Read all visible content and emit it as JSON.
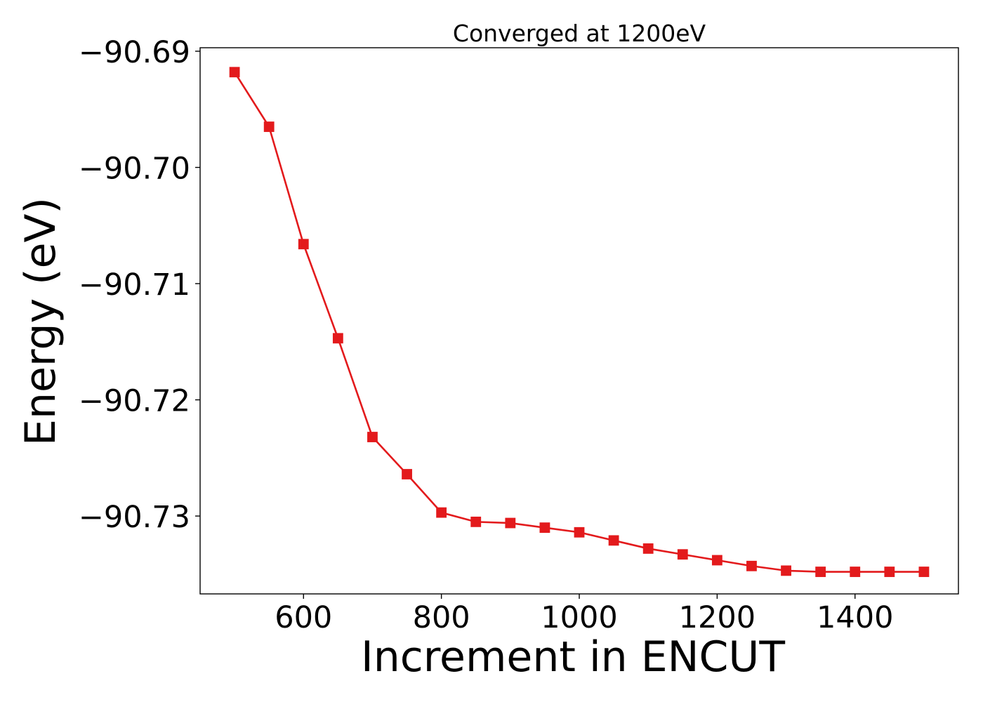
{
  "chart_data": {
    "type": "line",
    "title": "Converged at 1200eV",
    "xlabel": "Increment in ENCUT",
    "ylabel": "Energy (eV)",
    "x": [
      500,
      550,
      600,
      650,
      700,
      750,
      800,
      850,
      900,
      950,
      1000,
      1050,
      1100,
      1150,
      1200,
      1250,
      1300,
      1350,
      1400,
      1450,
      1500
    ],
    "series": [
      {
        "color": "#e31a1c",
        "marker": "square",
        "values": [
          -90.6918,
          -90.6965,
          -90.7066,
          -90.7147,
          -90.7232,
          -90.7264,
          -90.7297,
          -90.7305,
          -90.7306,
          -90.731,
          -90.7314,
          -90.7321,
          -90.7328,
          -90.7333,
          -90.7338,
          -90.7343,
          -90.7347,
          -90.7348,
          -90.7348,
          -90.7348,
          -90.7348
        ]
      }
    ],
    "xlim": [
      450,
      1550
    ],
    "ylim": [
      -90.7367,
      -90.6897
    ],
    "xticks": [
      600,
      800,
      1000,
      1200,
      1400
    ],
    "xtick_labels": [
      "600",
      "800",
      "1000",
      "1200",
      "1400"
    ],
    "yticks": [
      -90.69,
      -90.7,
      -90.71,
      -90.72,
      -90.73
    ],
    "ytick_labels": [
      "−90.69",
      "−90.70",
      "−90.71",
      "−90.72",
      "−90.73"
    ],
    "grid": false,
    "legend": "none"
  }
}
